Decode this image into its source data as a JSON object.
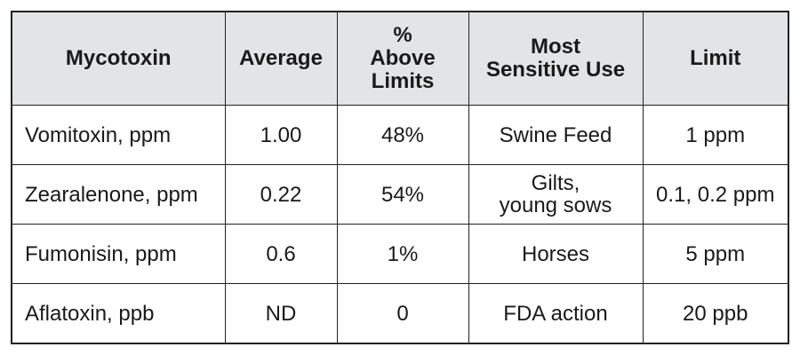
{
  "table": {
    "headers": {
      "mycotoxin": "Mycotoxin",
      "average": "Average",
      "above_limits": [
        "%",
        "Above",
        "Limits"
      ],
      "sensitive_use": [
        "Most",
        "Sensitive Use"
      ],
      "limit": "Limit"
    },
    "rows": [
      {
        "mycotoxin": "Vomitoxin, ppm",
        "average": "1.00",
        "above": "48%",
        "use": [
          "Swine Feed"
        ],
        "limit": "1 ppm"
      },
      {
        "mycotoxin": "Zearalenone, ppm",
        "average": "0.22",
        "above": "54%",
        "use": [
          "Gilts,",
          "young sows"
        ],
        "limit": "0.1, 0.2 ppm"
      },
      {
        "mycotoxin": "Fumonisin, ppm",
        "average": "0.6",
        "above": "1%",
        "use": [
          "Horses"
        ],
        "limit": "5 ppm"
      },
      {
        "mycotoxin": "Aflatoxin, ppb",
        "average": "ND",
        "above": "0",
        "use": [
          "FDA action"
        ],
        "limit": "20 ppb"
      }
    ]
  }
}
